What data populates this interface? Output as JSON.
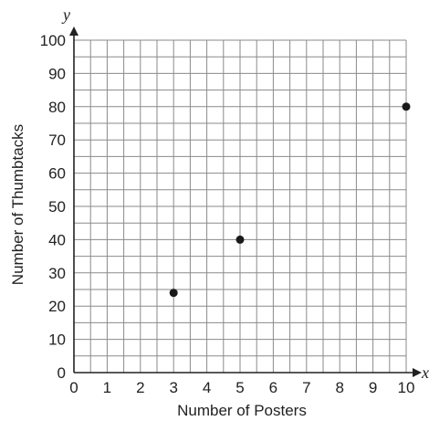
{
  "chart_data": {
    "type": "scatter",
    "xlabel": "Number of Posters",
    "ylabel": "Number of Thumbtacks",
    "x_var": "x",
    "y_var": "y",
    "xlim": [
      0,
      10
    ],
    "ylim": [
      0,
      100
    ],
    "x_ticks": [
      0,
      1,
      2,
      3,
      4,
      5,
      6,
      7,
      8,
      9,
      10
    ],
    "y_ticks": [
      0,
      10,
      20,
      30,
      40,
      50,
      60,
      70,
      80,
      90,
      100
    ],
    "grid": true,
    "grid_minor_per_major": 2,
    "points": [
      {
        "x": 3,
        "y": 24
      },
      {
        "x": 5,
        "y": 40
      },
      {
        "x": 10,
        "y": 80
      }
    ],
    "point_color": "#1a1a1a"
  }
}
